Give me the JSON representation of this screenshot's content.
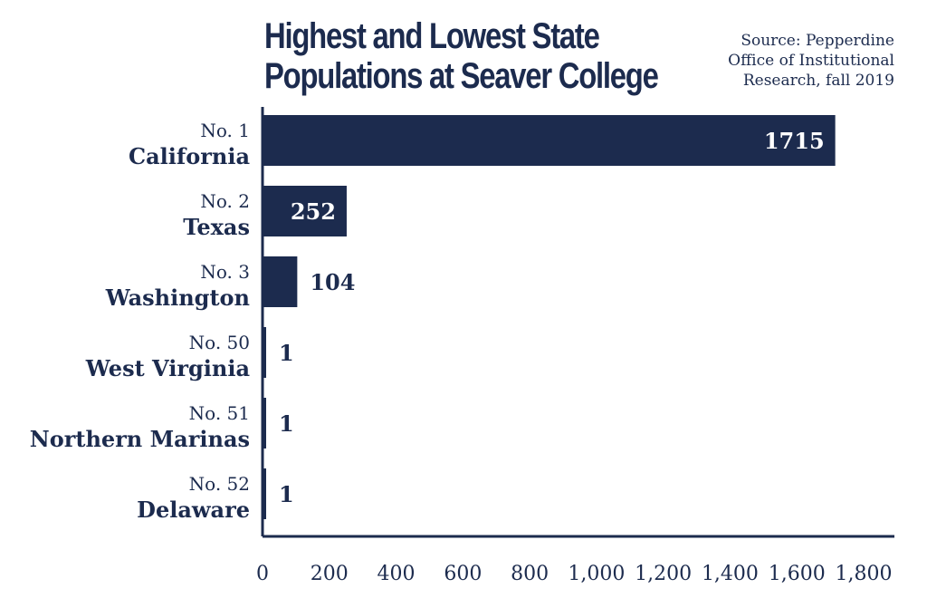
{
  "title_lines": [
    "Highest and Lowest State",
    "Populations at Seaver College"
  ],
  "source_lines": [
    "Source: Pepperdine",
    "Office of Institutional",
    "Research, fall 2019"
  ],
  "colors": {
    "bar": "#1c2b4e",
    "text": "#1c2b4e",
    "value_inside": "#ffffff"
  },
  "chart_data": {
    "type": "bar",
    "orientation": "horizontal",
    "categories": [
      "California",
      "Texas",
      "Washington",
      "West Virginia",
      "Northern Marinas",
      "Delaware"
    ],
    "ranks": [
      "No. 1",
      "No. 2",
      "No. 3",
      "No. 50",
      "No. 51",
      "No. 52"
    ],
    "values": [
      1715,
      252,
      104,
      1,
      1,
      1
    ],
    "value_labels": [
      "1715",
      "252",
      "104",
      "1",
      "1",
      "1"
    ],
    "xlim": [
      0,
      1800
    ],
    "xticks": [
      0,
      200,
      400,
      600,
      800,
      1000,
      1200,
      1400,
      1600,
      1800
    ],
    "xtick_labels": [
      "0",
      "200",
      "400",
      "600",
      "800",
      "1,000",
      "1,200",
      "1,400",
      "1,600",
      "1,800"
    ],
    "grid": false,
    "legend": "none"
  }
}
